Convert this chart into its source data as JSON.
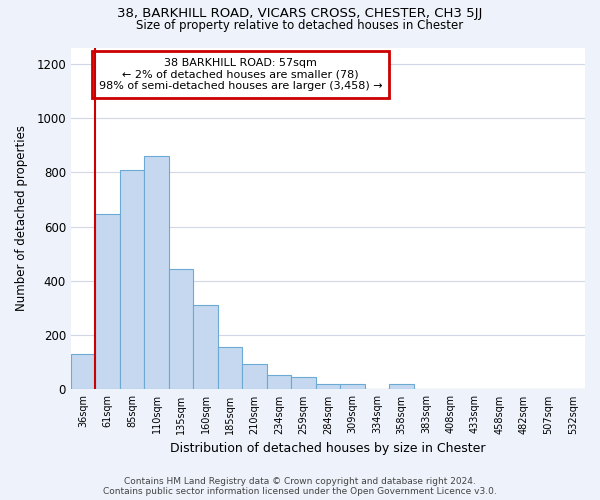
{
  "title1": "38, BARKHILL ROAD, VICARS CROSS, CHESTER, CH3 5JJ",
  "title2": "Size of property relative to detached houses in Chester",
  "xlabel": "Distribution of detached houses by size in Chester",
  "ylabel": "Number of detached properties",
  "footer1": "Contains HM Land Registry data © Crown copyright and database right 2024.",
  "footer2": "Contains public sector information licensed under the Open Government Licence v3.0.",
  "annotation_title": "38 BARKHILL ROAD: 57sqm",
  "annotation_line2": "← 2% of detached houses are smaller (78)",
  "annotation_line3": "98% of semi-detached houses are larger (3,458) →",
  "bar_color": "#c5d8f0",
  "bar_edge_color": "#6aaad4",
  "vline_color": "#cc0000",
  "annotation_box_edgecolor": "#cc0000",
  "categories": [
    "36sqm",
    "61sqm",
    "85sqm",
    "110sqm",
    "135sqm",
    "160sqm",
    "185sqm",
    "210sqm",
    "234sqm",
    "259sqm",
    "284sqm",
    "309sqm",
    "334sqm",
    "358sqm",
    "383sqm",
    "408sqm",
    "433sqm",
    "458sqm",
    "482sqm",
    "507sqm",
    "532sqm"
  ],
  "values": [
    130,
    645,
    810,
    860,
    445,
    310,
    155,
    93,
    55,
    45,
    20,
    20,
    0,
    20,
    0,
    0,
    0,
    0,
    0,
    0,
    0
  ],
  "vline_x": 0.5,
  "ylim": [
    0,
    1260
  ],
  "yticks": [
    0,
    200,
    400,
    600,
    800,
    1000,
    1200
  ],
  "background_color": "#eef2fa",
  "plot_bg_color": "#ffffff",
  "grid_color": "#d0d8e8"
}
